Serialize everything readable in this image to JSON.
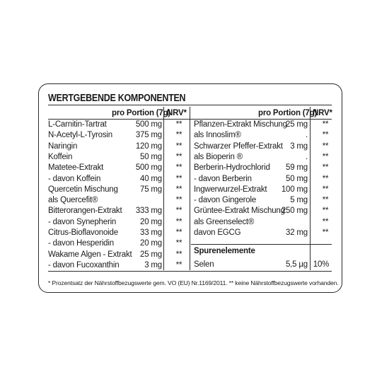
{
  "title": "WERTGEBENDE KOMPONENTEN",
  "left": {
    "col_portion": "pro Portion (7g)",
    "col_nrv": "NRV*",
    "rows": [
      {
        "name": "L-Carnitin-Tartrat",
        "value": "500 mg",
        "nrv": "**"
      },
      {
        "name": "N-Acetyl-L-Tyrosin",
        "value": "375 mg",
        "nrv": "**"
      },
      {
        "name": "Naringin",
        "value": "120 mg",
        "nrv": "**"
      },
      {
        "name": "Koffein",
        "value": "50 mg",
        "nrv": "**"
      },
      {
        "name": "Matetee-Extrakt",
        "value": "500 mg",
        "nrv": "**"
      },
      {
        "name": " - davon Koffein",
        "value": "40 mg",
        "nrv": "**"
      },
      {
        "name": "Quercetin Mischung",
        "value": "75 mg",
        "nrv": "**"
      },
      {
        "name": "als Quercefit®",
        "value": "",
        "nrv": "**"
      },
      {
        "name": "Bitterorangen-Extrakt",
        "value": "333 mg",
        "nrv": "**"
      },
      {
        "name": " - davon Synepherin",
        "value": "20 mg",
        "nrv": "**"
      },
      {
        "name": "Citrus-Bioflavonoide",
        "value": "33 mg",
        "nrv": "**"
      },
      {
        "name": " - davon Hesperidin",
        "value": "20 mg",
        "nrv": "**"
      },
      {
        "name": "Wakame Algen - Extrakt",
        "value": "25 mg",
        "nrv": "**"
      },
      {
        "name": " - davon Fucoxanthin",
        "value": "3 mg",
        "nrv": "**"
      }
    ]
  },
  "right": {
    "col_portion": "pro Portion (7g)",
    "col_nrv": "NRV*",
    "rows": [
      {
        "name": "Pflanzen-Extrakt Mischung",
        "value": "25 mg",
        "nrv": "**"
      },
      {
        "name": "als Innoslim®",
        "value": ".",
        "nrv": "**"
      },
      {
        "name": "Schwarzer Pfeffer-Extrakt",
        "value": "3 mg",
        "nrv": "**"
      },
      {
        "name": "als Bioperin ®",
        "value": ".",
        "nrv": "**"
      },
      {
        "name": "Berberin-Hydrochlorid",
        "value": "59 mg",
        "nrv": "**"
      },
      {
        "name": " - davon Berberin",
        "value": "50 mg",
        "nrv": "**"
      },
      {
        "name": "Ingwerwurzel-Extrakt",
        "value": "100 mg",
        "nrv": "**"
      },
      {
        "name": " - davon Gingerole",
        "value": "5 mg",
        "nrv": "**"
      },
      {
        "name": "Grüntee-Extrakt Mischung",
        "value": "250 mg",
        "nrv": "**"
      },
      {
        "name": "als Greenselect®",
        "value": "",
        "nrv": "**"
      },
      {
        "name": "davon EGCG",
        "value": "32 mg",
        "nrv": "**"
      }
    ],
    "trace_heading": "Spurenelemente",
    "trace_rows": [
      {
        "name": "Selen",
        "value": "5,5 µg",
        "nrv": "10%"
      }
    ]
  },
  "footnote": "* Prozentsatz der Nährstoffbezugswerte gem. VO (EU) Nr.1169/2011. ** keine Nährstoffbezugswerte vorhanden."
}
